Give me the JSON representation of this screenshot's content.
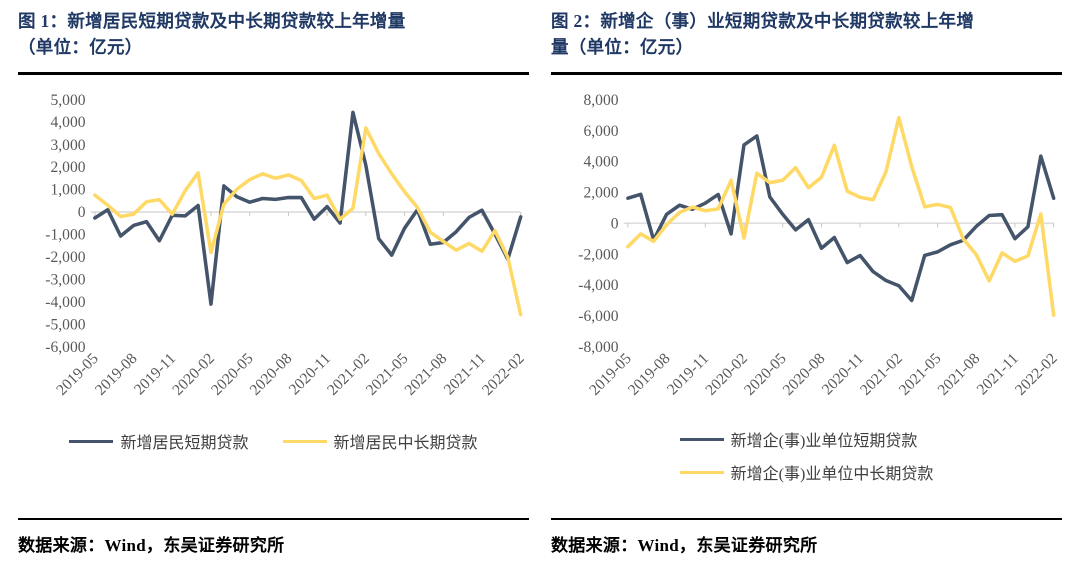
{
  "page": {
    "figure1": {
      "title_line1": "图 1：新增居民短期贷款及中长期贷款较上年增量",
      "title_line2": "（单位：亿元）",
      "source": "数据来源：Wind，东吴证券研究所"
    },
    "figure2": {
      "title_line1": "图 2：新增企（事）业短期贷款及中长期贷款较上年增",
      "title_line2": "量（单位：亿元）",
      "source": "数据来源：Wind，东吴证券研究所"
    }
  },
  "colors": {
    "title_navy": "#1F3864",
    "short_term_line": "#44546A",
    "medium_long_term_line": "#FFD966",
    "zero_axis_line": "#D9D9D9",
    "tick_mark_gray": "#C8C8C8",
    "axis_label_gray": "#595959",
    "divider_black": "#000000"
  },
  "chart_data": [
    {
      "type": "line",
      "title": "图 1：新增居民短期贷款及中长期贷款较上年增量（单位：亿元）",
      "x": [
        "2019-05",
        "2019-06",
        "2019-07",
        "2019-08",
        "2019-09",
        "2019-10",
        "2019-11",
        "2019-12",
        "2020-01",
        "2020-02",
        "2020-03",
        "2020-04",
        "2020-05",
        "2020-06",
        "2020-07",
        "2020-08",
        "2020-09",
        "2020-10",
        "2020-11",
        "2020-12",
        "2021-01",
        "2021-02",
        "2021-03",
        "2021-04",
        "2021-05",
        "2021-06",
        "2021-07",
        "2021-08",
        "2021-09",
        "2021-10",
        "2021-11",
        "2021-12",
        "2022-01",
        "2022-02"
      ],
      "x_tick_step": 3,
      "x_tick_labels": [
        "2019-05",
        "2019-08",
        "2019-11",
        "2020-02",
        "2020-05",
        "2020-08",
        "2020-11",
        "2021-02",
        "2021-05",
        "2021-08",
        "2021-11",
        "2022-02"
      ],
      "ylim": [
        -6000,
        5000
      ],
      "ystep": 1000,
      "grid": "zero-line-only",
      "legend_position": "bottom",
      "series": [
        {
          "name": "新增居民短期贷款",
          "color": "#44546A",
          "values": [
            -270,
            100,
            -1070,
            -600,
            -430,
            -1280,
            -150,
            -170,
            290,
            -4100,
            1160,
            680,
            435,
            600,
            560,
            640,
            640,
            -320,
            240,
            -490,
            4430,
            2080,
            -1190,
            -1920,
            -720,
            100,
            -1440,
            -1360,
            -880,
            -240,
            80,
            -985,
            -2100,
            -220
          ]
        },
        {
          "name": "新增居民中长期贷款",
          "color": "#FFD966",
          "values": [
            750,
            300,
            -200,
            -100,
            450,
            550,
            -100,
            950,
            1740,
            -1800,
            340,
            1010,
            1440,
            1700,
            1500,
            1650,
            1400,
            600,
            750,
            -320,
            160,
            3740,
            2600,
            1700,
            900,
            200,
            -900,
            -1310,
            -1700,
            -1400,
            -1750,
            -830,
            -2020,
            -4570
          ]
        }
      ]
    },
    {
      "type": "line",
      "title": "图 2：新增企（事）业短期贷款及中长期贷款较上年增量（单位：亿元）",
      "x": [
        "2019-05",
        "2019-06",
        "2019-07",
        "2019-08",
        "2019-09",
        "2019-10",
        "2019-11",
        "2019-12",
        "2020-01",
        "2020-02",
        "2020-03",
        "2020-04",
        "2020-05",
        "2020-06",
        "2020-07",
        "2020-08",
        "2020-09",
        "2020-10",
        "2020-11",
        "2020-12",
        "2021-01",
        "2021-02",
        "2021-03",
        "2021-04",
        "2021-05",
        "2021-06",
        "2021-07",
        "2021-08",
        "2021-09",
        "2021-10",
        "2021-11",
        "2021-12",
        "2022-01",
        "2022-02"
      ],
      "x_tick_step": 3,
      "x_tick_labels": [
        "2019-05",
        "2019-08",
        "2019-11",
        "2020-02",
        "2020-05",
        "2020-08",
        "2020-11",
        "2021-02",
        "2021-05",
        "2021-08",
        "2021-11",
        "2022-02"
      ],
      "ylim": [
        -8000,
        8000
      ],
      "ystep": 2000,
      "grid": "zero-line-only",
      "legend_position": "bottom",
      "series": [
        {
          "name": "新增企(事)业单位短期贷款",
          "color": "#44546A",
          "values": [
            1620,
            1870,
            -1090,
            580,
            1160,
            900,
            1300,
            1860,
            -690,
            5070,
            5650,
            1700,
            580,
            -430,
            230,
            -1620,
            -930,
            -2550,
            -2090,
            -3130,
            -3710,
            -4050,
            -5000,
            -2085,
            -1855,
            -1400,
            -1100,
            -200,
            500,
            550,
            -1000,
            -230,
            4345,
            1614
          ]
        },
        {
          "name": "新增企(事)业单位中长期贷款",
          "color": "#FFD966",
          "values": [
            -1520,
            -690,
            -1170,
            -100,
            690,
            1040,
            810,
            930,
            2780,
            -970,
            3240,
            2620,
            2780,
            3600,
            2290,
            2970,
            5040,
            2070,
            1680,
            1520,
            3320,
            6840,
            3660,
            1060,
            1220,
            1020,
            -1030,
            -2040,
            -3730,
            -1920,
            -2470,
            -2110,
            600,
            -5950
          ]
        }
      ]
    }
  ]
}
